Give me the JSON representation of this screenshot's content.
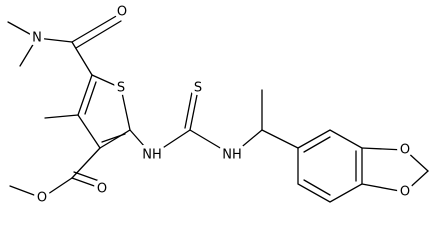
{
  "molecule": {
    "atoms": [
      "O",
      "N",
      "S",
      "S",
      "NH",
      "NH",
      "O",
      "O",
      "O",
      "O"
    ]
  }
}
